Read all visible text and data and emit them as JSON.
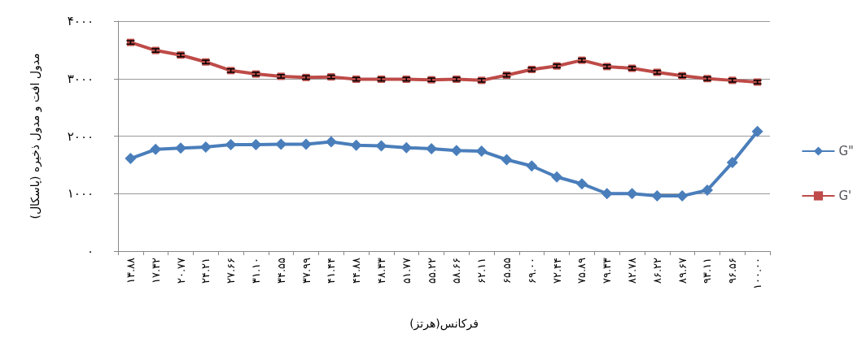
{
  "chart_data": {
    "type": "line",
    "xlabel": "فرکانس(هرتز)",
    "ylabel": "مدول افت و مدول ذخیره (پاسکال)",
    "categories": [
      "۱۳.۸۸",
      "۱۷.۳۲",
      "۲۰.۷۷",
      "۲۴.۲۱",
      "۲۷.۶۶",
      "۳۱.۱۰",
      "۳۴.۵۵",
      "۳۷.۹۹",
      "۴۱.۴۴",
      "۴۴.۸۸",
      "۴۸.۳۳",
      "۵۱.۷۷",
      "۵۵.۲۲",
      "۵۸.۶۶",
      "۶۲.۱۱",
      "۶۵.۵۵",
      "۶۹.۰۰",
      "۷۲.۴۴",
      "۷۵.۸۹",
      "۷۹.۳۳",
      "۸۲.۷۸",
      "۸۶.۲۲",
      "۸۹.۶۷",
      "۹۳.۱۱",
      "۹۶.۵۶",
      "۱۰۰.۰۰"
    ],
    "series": [
      {
        "name": "G\"",
        "color": "#4a7ebb",
        "marker": "diamond",
        "values": [
          1610,
          1770,
          1790,
          1810,
          1850,
          1850,
          1860,
          1860,
          1900,
          1840,
          1830,
          1800,
          1780,
          1750,
          1740,
          1590,
          1480,
          1290,
          1170,
          1000,
          1000,
          960,
          960,
          1060,
          1540,
          2080
        ]
      },
      {
        "name": "G'",
        "color": "#be4b48",
        "marker": "square",
        "values": [
          3630,
          3490,
          3410,
          3290,
          3140,
          3080,
          3040,
          3020,
          3030,
          2990,
          2990,
          2990,
          2980,
          2990,
          2970,
          3060,
          3160,
          3220,
          3320,
          3210,
          3180,
          3110,
          3050,
          3000,
          2970,
          2940
        ],
        "errors": [
          30,
          30,
          30,
          30,
          30,
          30,
          30,
          30,
          30,
          30,
          30,
          30,
          30,
          30,
          30,
          30,
          30,
          30,
          30,
          30,
          30,
          30,
          30,
          30,
          30,
          30
        ]
      }
    ],
    "ylim": [
      0,
      4000
    ],
    "yticks": [
      {
        "value": 0,
        "label": "۰"
      },
      {
        "value": 1000,
        "label": "۱۰۰۰"
      },
      {
        "value": 2000,
        "label": "۲۰۰۰"
      },
      {
        "value": 3000,
        "label": "۳۰۰۰"
      },
      {
        "value": 4000,
        "label": "۴۰۰۰"
      }
    ],
    "grid": "y",
    "legend": "right",
    "line_style": "solid"
  }
}
